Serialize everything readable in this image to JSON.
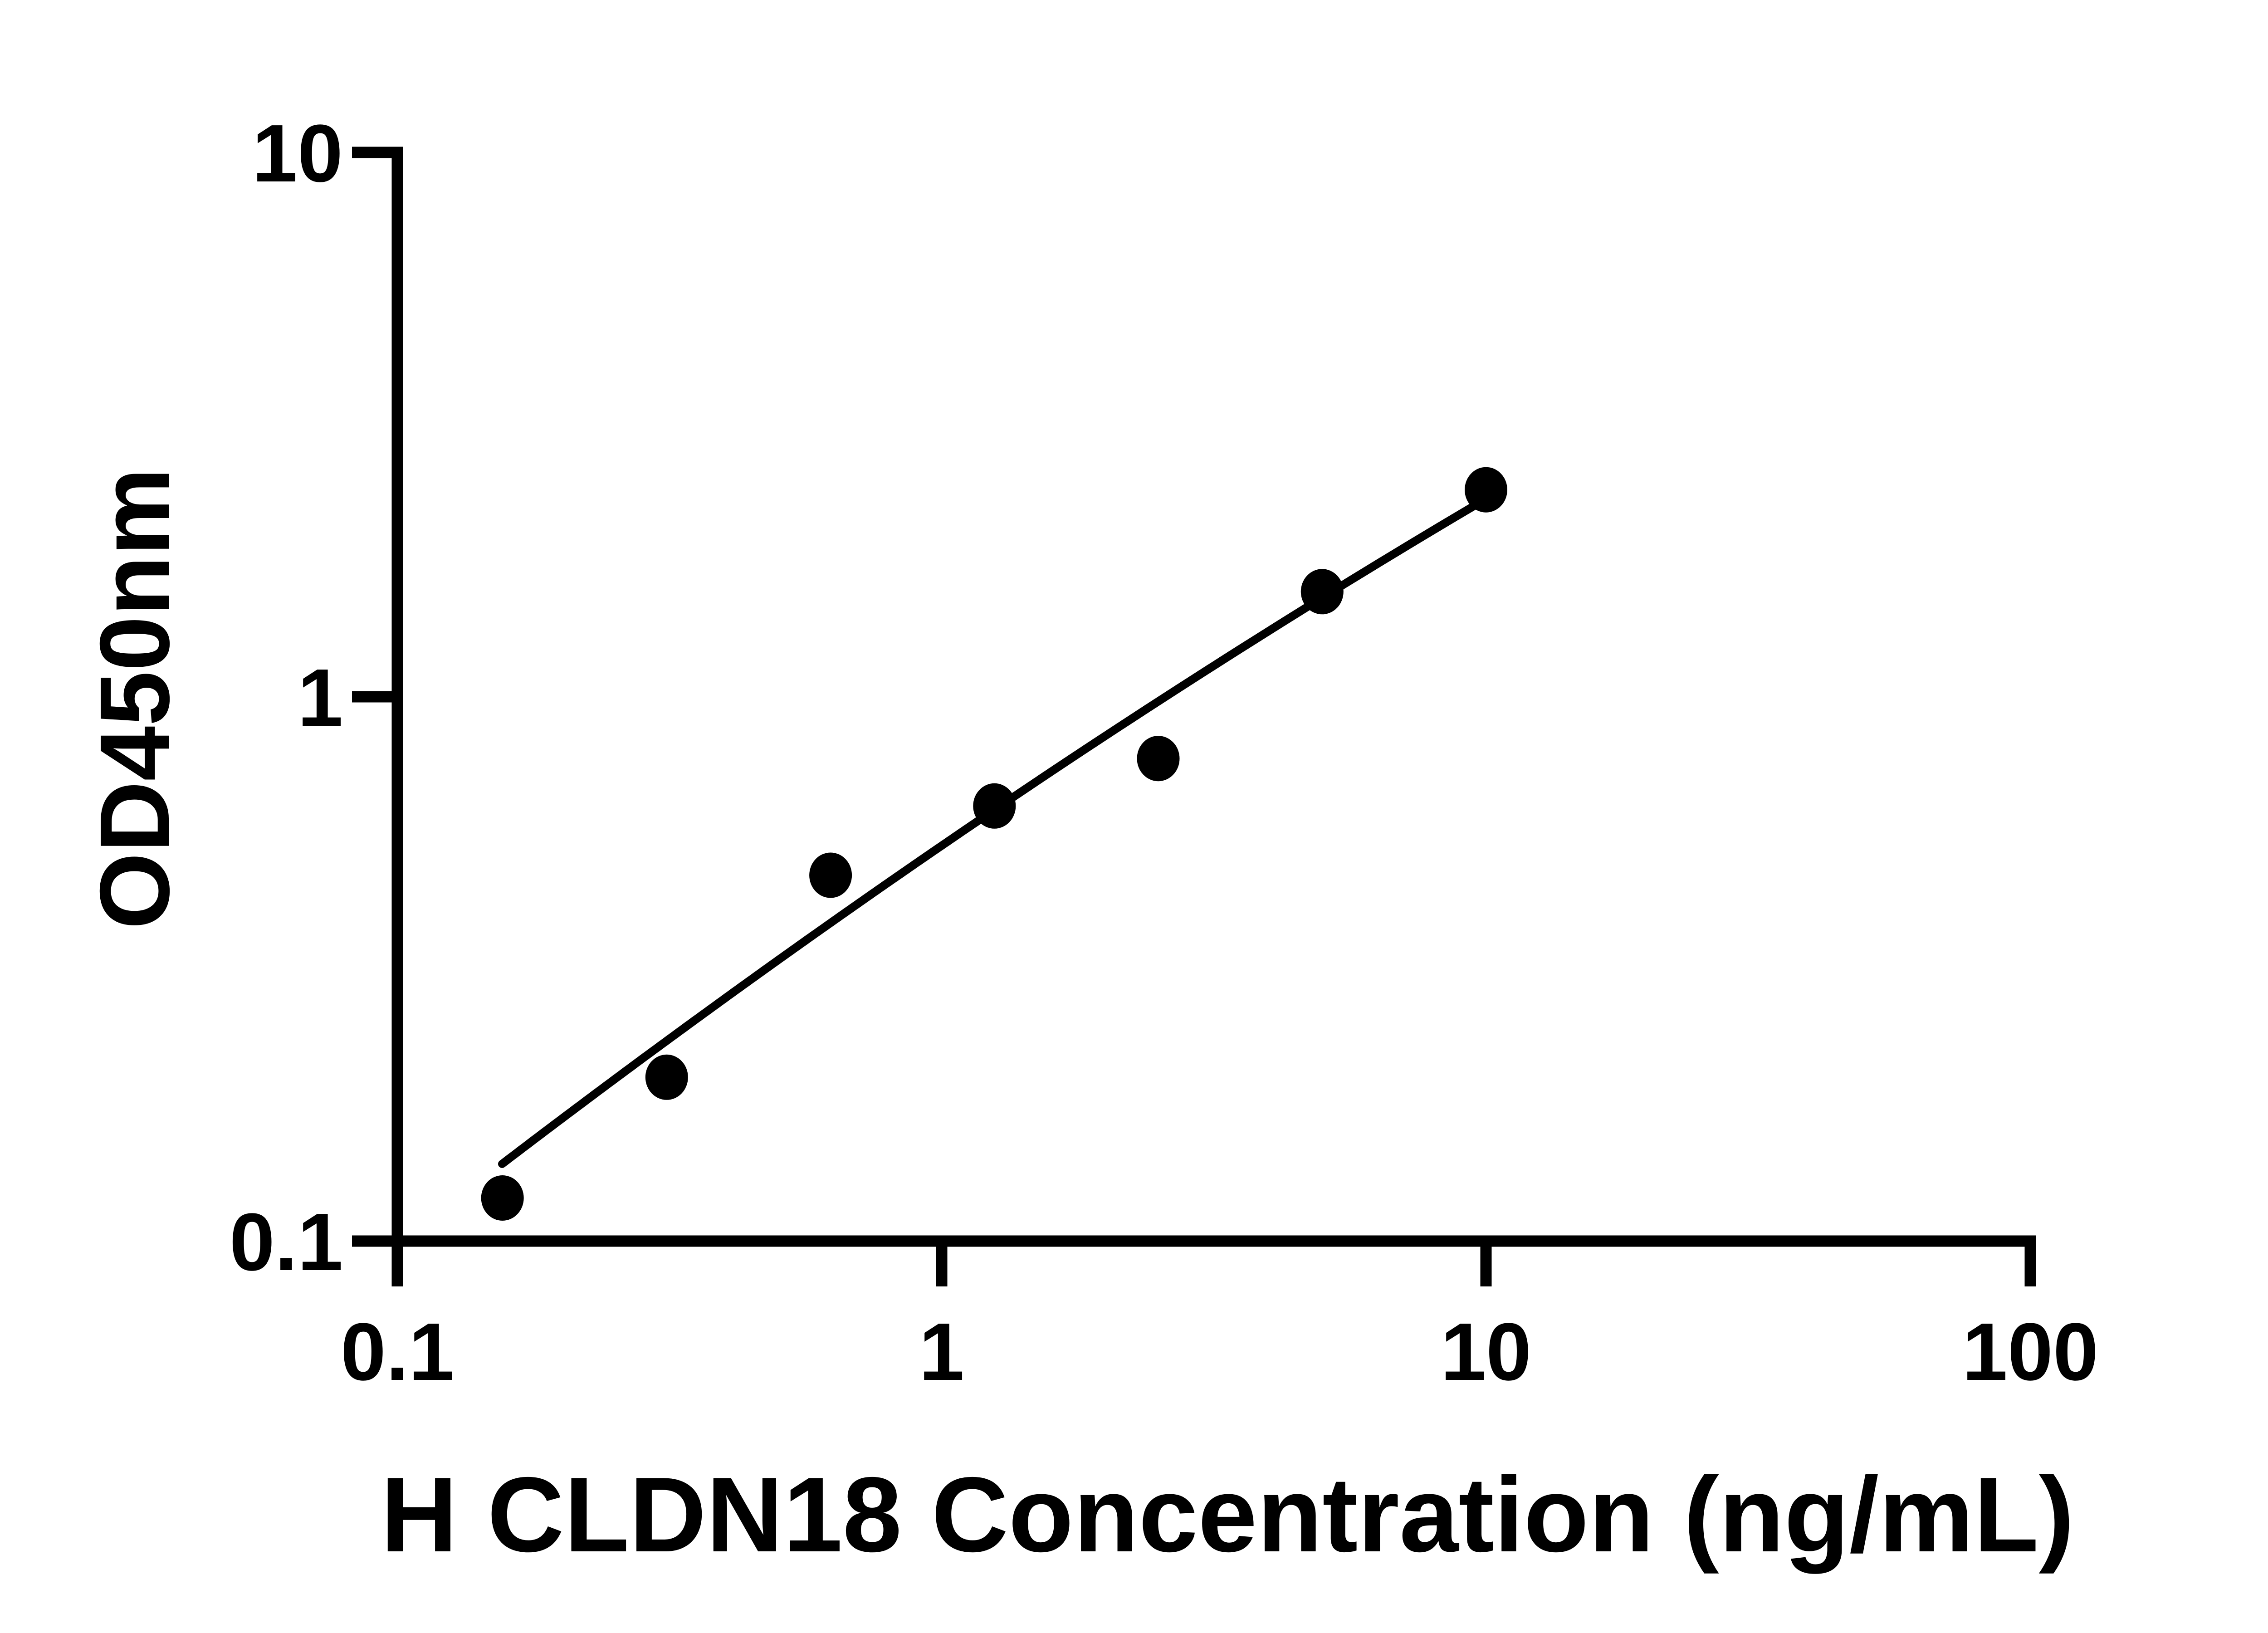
{
  "page": {
    "background_color": "#ffffff",
    "ink_color": "#000000"
  },
  "chart_data": {
    "type": "scatter",
    "title": "",
    "xlabel": "H CLDN18 Concentration (ng/mL)",
    "ylabel": "OD450nm",
    "x_scale": "log10",
    "y_scale": "log10",
    "xlim": [
      0.1,
      100
    ],
    "ylim": [
      0.1,
      10
    ],
    "grid": false,
    "legend": false,
    "x_ticks": [
      {
        "value": 0.1,
        "label": "0.1"
      },
      {
        "value": 1,
        "label": "1"
      },
      {
        "value": 10,
        "label": "10"
      },
      {
        "value": 100,
        "label": "100"
      }
    ],
    "y_ticks": [
      {
        "value": 10,
        "label": "10"
      },
      {
        "value": 1,
        "label": "1"
      },
      {
        "value": 0.1,
        "label": "0.1"
      }
    ],
    "series": [
      {
        "name": "standard-points",
        "marker": "filled-circle",
        "color": "#000000",
        "points": [
          {
            "x": 0.156,
            "y": 0.12
          },
          {
            "x": 0.3125,
            "y": 0.2
          },
          {
            "x": 0.625,
            "y": 0.47
          },
          {
            "x": 1.25,
            "y": 0.63
          },
          {
            "x": 2.5,
            "y": 0.77
          },
          {
            "x": 5,
            "y": 1.56
          },
          {
            "x": 10,
            "y": 2.4
          }
        ]
      }
    ],
    "fit_curve": {
      "name": "standard-curve-fit",
      "model": "quadratic-in-log10",
      "comment": "log10(OD) = a + b*u + c*u^2, u = log10(conc)",
      "a": -0.2736,
      "b": 0.6852,
      "c": -0.04803,
      "log10x_min": -0.8075,
      "log10x_max": 1.0,
      "color": "#000000"
    }
  }
}
